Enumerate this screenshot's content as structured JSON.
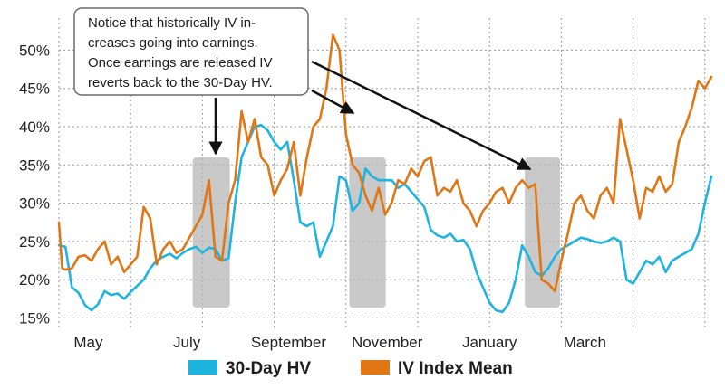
{
  "colors": {
    "hv": "#1fb3e0",
    "iv": "#e07614",
    "shade": "#b7b7b7",
    "arrow": "#111111"
  },
  "annotation": {
    "lines": [
      "Notice that historically IV in-",
      "creases going into earnings.",
      "Once earnings are released IV",
      "reverts back to the 30-Day HV."
    ]
  },
  "chart_data": {
    "type": "line",
    "ylim": [
      14,
      53
    ],
    "ytick_labels": [
      "15%",
      "20%",
      "25%",
      "30%",
      "35%",
      "40%",
      "45%",
      "50%"
    ],
    "yticks": [
      15,
      20,
      25,
      30,
      35,
      40,
      45,
      50
    ],
    "xlim": [
      0,
      100
    ],
    "xtick_labels": [
      "May",
      "July",
      "September",
      "November",
      "January",
      "March"
    ],
    "xticks": [
      4.5,
      19.6,
      35.2,
      50.3,
      66.0,
      80.6
    ],
    "grid": true,
    "legend": "bottom-center",
    "shaded_regions": [
      [
        20.5,
        26.2
      ],
      [
        44.5,
        50.1
      ],
      [
        71.4,
        76.8
      ]
    ],
    "series": [
      {
        "name": "30-Day HV",
        "x": [
          0,
          1,
          2,
          3,
          4,
          5,
          6,
          7,
          8,
          9,
          10,
          11,
          12,
          13,
          14,
          15,
          16,
          17,
          18,
          19,
          20,
          21,
          22,
          23,
          24,
          25,
          26,
          27,
          28,
          29,
          30,
          31,
          32,
          33,
          34,
          35,
          36,
          37,
          38,
          39,
          40,
          41,
          42,
          43,
          44,
          45,
          46,
          47,
          48,
          49,
          50,
          51,
          52,
          53,
          54,
          55,
          56,
          57,
          58,
          59,
          60,
          61,
          62,
          63,
          64,
          65,
          66,
          67,
          68,
          69,
          70,
          71,
          72,
          73,
          74,
          75,
          76,
          77,
          78,
          79,
          80,
          81,
          82,
          83,
          84,
          85,
          86,
          87,
          88,
          89,
          90,
          91,
          92,
          93,
          94,
          95,
          96,
          97,
          98,
          99,
          100
        ],
        "values": [
          24.5,
          24.3,
          19.0,
          18.3,
          16.7,
          16.0,
          16.8,
          18.5,
          18.0,
          18.2,
          17.5,
          18.4,
          19.2,
          20.0,
          21.5,
          22.5,
          23.0,
          23.4,
          22.8,
          23.5,
          24.0,
          24.3,
          23.5,
          24.2,
          24.0,
          22.5,
          22.8,
          30.0,
          36.0,
          38.0,
          40.0,
          40.2,
          39.5,
          38.0,
          37.0,
          38.0,
          33.0,
          27.5,
          27.0,
          27.5,
          23.0,
          25.0,
          27.0,
          33.5,
          33.0,
          29.0,
          30.0,
          34.5,
          33.5,
          33.0,
          33.0,
          33.0,
          32.0,
          32.5,
          31.5,
          30.5,
          29.5,
          26.5,
          25.8,
          25.5,
          26.0,
          25.0,
          25.2,
          24.0,
          21.0,
          19.0,
          17.0,
          16.0,
          15.8,
          17.0,
          20.0,
          24.5,
          23.0,
          21.0,
          20.5,
          21.5,
          23.0,
          24.0,
          24.5,
          25.0,
          25.5,
          25.3,
          25.0,
          24.8,
          25.0,
          25.5,
          25.0,
          20.0,
          19.5,
          21.0,
          22.5,
          22.0,
          23.0,
          21.0,
          22.5,
          23.0,
          23.5,
          24.0,
          26.0,
          30.0,
          33.5
        ]
      },
      {
        "name": "IV Index Mean",
        "x": [
          0,
          0.5,
          1,
          2,
          3,
          4,
          5,
          6,
          7,
          8,
          9,
          10,
          11,
          12,
          13,
          14,
          15,
          16,
          17,
          18,
          19,
          20,
          21,
          22,
          23,
          24,
          25,
          26,
          27,
          28,
          29,
          30,
          31,
          32,
          33,
          34,
          35,
          36,
          37,
          38,
          39,
          40,
          41,
          42,
          43,
          44,
          45,
          46,
          47,
          48,
          49,
          50,
          51,
          52,
          53,
          54,
          55,
          56,
          57,
          58,
          59,
          60,
          61,
          62,
          63,
          64,
          65,
          66,
          67,
          68,
          69,
          70,
          71,
          72,
          73,
          74,
          75,
          76,
          77,
          78,
          79,
          80,
          81,
          82,
          83,
          84,
          85,
          86,
          87,
          88,
          89,
          90,
          91,
          92,
          93,
          94,
          95,
          96,
          97,
          98,
          99,
          100
        ],
        "values": [
          27.5,
          21.5,
          21.3,
          21.5,
          23.0,
          23.2,
          22.5,
          24.0,
          25.0,
          22.0,
          23.0,
          21.0,
          22.0,
          23.0,
          29.5,
          28.0,
          22.0,
          24.0,
          25.0,
          23.5,
          24.0,
          25.5,
          27.0,
          28.5,
          33.0,
          23.0,
          22.5,
          30.0,
          33.0,
          42.0,
          38.0,
          41.0,
          36.0,
          35.0,
          31.0,
          33.0,
          34.5,
          38.0,
          31.0,
          36.0,
          40.0,
          41.0,
          45.0,
          52.0,
          50.0,
          39.0,
          35.0,
          34.0,
          31.0,
          29.0,
          32.0,
          28.5,
          30.0,
          33.0,
          32.5,
          34.5,
          33.5,
          35.5,
          36.0,
          31.0,
          32.0,
          31.5,
          33.0,
          30.0,
          29.0,
          27.0,
          29.0,
          30.0,
          31.5,
          32.0,
          30.0,
          32.0,
          33.0,
          32.0,
          32.5,
          20.0,
          19.5,
          18.5,
          22.5,
          26.0,
          30.0,
          31.0,
          29.0,
          28.0,
          31.0,
          32.0,
          30.0,
          41.0,
          37.0,
          33.0,
          28.0,
          32.0,
          31.5,
          33.5,
          31.5,
          32.5,
          38.0,
          40.0,
          42.5,
          46.0,
          45.0,
          46.5
        ]
      }
    ]
  }
}
